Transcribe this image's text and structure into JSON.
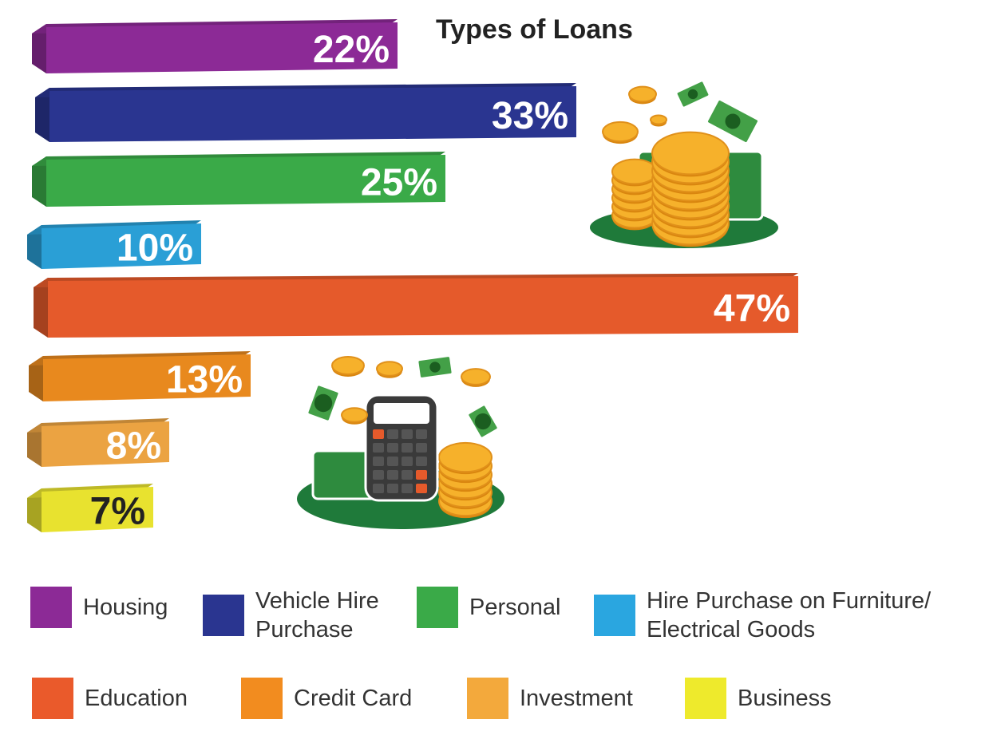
{
  "chart_data": {
    "type": "bar",
    "orientation": "horizontal",
    "title": "Types of Loans",
    "categories": [
      "Housing",
      "Vehicle Hire Purchase",
      "Personal",
      "Hire Purchase on Furniture/ Electrical Goods",
      "Education",
      "Credit Card",
      "Investment",
      "Business"
    ],
    "values": [
      22,
      33,
      25,
      10,
      47,
      13,
      8,
      7
    ],
    "value_labels": [
      "22%",
      "33%",
      "25%",
      "10%",
      "47%",
      "13%",
      "8%",
      "7%"
    ],
    "unit": "%",
    "colors": [
      "#8c2a96",
      "#2a3590",
      "#3aaa48",
      "#2a9fd6",
      "#e55a2b",
      "#e8891e",
      "#eba342",
      "#e8e22f"
    ],
    "label_colors": [
      "#ffffff",
      "#ffffff",
      "#ffffff",
      "#ffffff",
      "#ffffff",
      "#ffffff",
      "#ffffff",
      "#222222"
    ],
    "grid": false,
    "legend_position": "bottom",
    "legend": {
      "rows": [
        [
          {
            "label": "Housing",
            "color": "#8c2a96"
          },
          {
            "label": "Vehicle Hire\nPurchase",
            "color": "#2a3590"
          },
          {
            "label": "Personal",
            "color": "#3aaa48"
          },
          {
            "label": "Hire Purchase on Furniture/\nElectrical Goods",
            "color": "#2aa6e0"
          }
        ],
        [
          {
            "label": "Education",
            "color": "#ea5a2b"
          },
          {
            "label": "Credit Card",
            "color": "#f28c1f"
          },
          {
            "label": "Investment",
            "color": "#f3a93c"
          },
          {
            "label": "Business",
            "color": "#eeea2c"
          }
        ]
      ]
    }
  },
  "illustrations": [
    "money-stack-coins-icon",
    "calculator-money-icon"
  ]
}
